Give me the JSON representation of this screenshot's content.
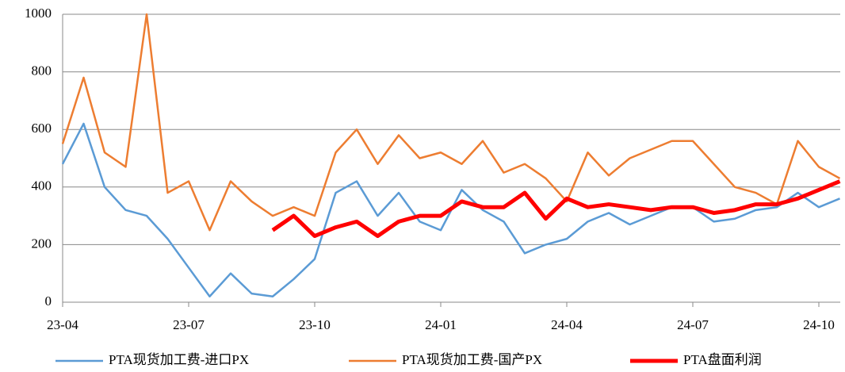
{
  "chart_data": {
    "type": "line",
    "categories": [
      "23-04",
      null,
      null,
      null,
      null,
      null,
      "23-07",
      null,
      null,
      null,
      null,
      null,
      "23-10",
      null,
      null,
      null,
      null,
      null,
      "24-01",
      null,
      null,
      null,
      null,
      null,
      "24-04",
      null,
      null,
      null,
      null,
      null,
      "24-07",
      null,
      null,
      null,
      null,
      null,
      "24-10",
      null
    ],
    "series": [
      {
        "name": "PTA现货加工费-进口PX",
        "color": "#5b9bd5",
        "width": 2.5,
        "values": [
          480,
          620,
          400,
          320,
          300,
          220,
          120,
          20,
          100,
          30,
          20,
          80,
          150,
          380,
          420,
          300,
          380,
          280,
          250,
          390,
          320,
          280,
          170,
          200,
          220,
          280,
          310,
          270,
          300,
          330,
          330,
          280,
          290,
          320,
          330,
          380,
          330,
          360
        ]
      },
      {
        "name": "PTA现货加工费-国产PX",
        "color": "#ed7d31",
        "width": 2.5,
        "values": [
          550,
          780,
          520,
          470,
          1000,
          380,
          420,
          250,
          420,
          350,
          300,
          330,
          300,
          520,
          600,
          480,
          580,
          500,
          520,
          480,
          560,
          450,
          480,
          430,
          350,
          520,
          440,
          500,
          530,
          560,
          560,
          480,
          400,
          380,
          340,
          560,
          470,
          430
        ]
      },
      {
        "name": "PTA盘面利润",
        "color": "#ff0000",
        "width": 5,
        "values": [
          null,
          null,
          null,
          null,
          null,
          null,
          null,
          null,
          null,
          null,
          250,
          300,
          230,
          260,
          280,
          230,
          280,
          300,
          300,
          350,
          330,
          330,
          380,
          290,
          360,
          330,
          340,
          330,
          320,
          330,
          330,
          310,
          320,
          340,
          340,
          360,
          390,
          420
        ]
      }
    ],
    "ylim": [
      0,
      1000
    ],
    "yticks": [
      0,
      200,
      400,
      600,
      800,
      1000
    ],
    "grid": true
  }
}
